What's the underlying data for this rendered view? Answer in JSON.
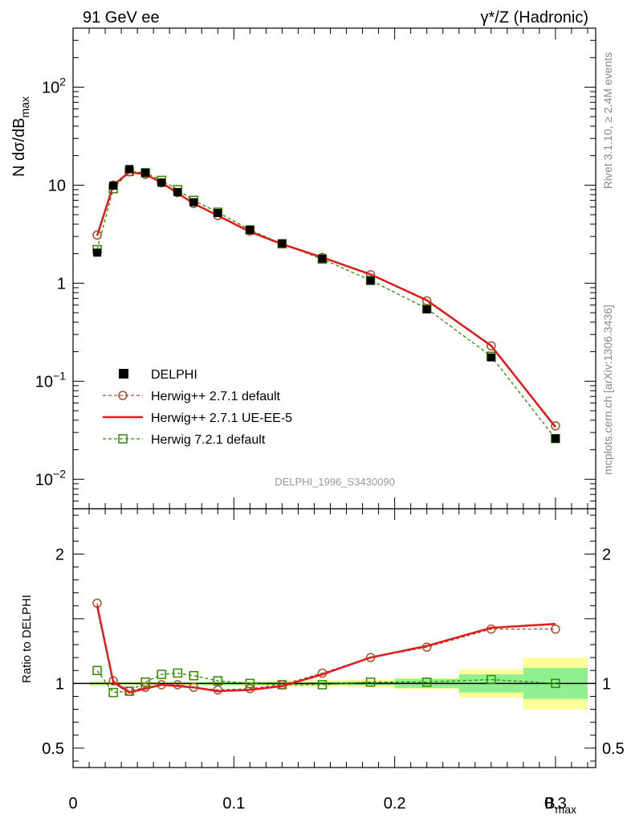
{
  "header": {
    "left": "91 GeV ee",
    "right": "γ*/Z (Hadronic)"
  },
  "side": {
    "top": "Rivet 3.1.10, ≥ 2.4M events",
    "bottom": "mcplots.cern.ch [arXiv:1306.3436]"
  },
  "analysis_tag": "DELPHI_1996_S3430090",
  "chart_data": [
    {
      "type": "scatter",
      "panel": "main",
      "ylabel": "N dσ/dB_max",
      "yscale": "log",
      "ylim": [
        0.005,
        400
      ],
      "xlim": [
        0,
        0.325
      ],
      "y_ticks": [
        {
          "v": 0.01,
          "label": "10",
          "exp": "−2"
        },
        {
          "v": 0.1,
          "label": "10",
          "exp": "−1"
        },
        {
          "v": 1,
          "label": "1",
          "exp": ""
        },
        {
          "v": 10,
          "label": "10",
          "exp": ""
        },
        {
          "v": 100,
          "label": "10",
          "exp": "2"
        }
      ],
      "legend_position": "center-left",
      "series": [
        {
          "name": "DELPHI",
          "x": [
            0.015,
            0.025,
            0.035,
            0.045,
            0.055,
            0.065,
            0.075,
            0.09,
            0.11,
            0.13,
            0.155,
            0.185,
            0.22,
            0.26,
            0.3
          ],
          "y": [
            2.05,
            9.9,
            14.6,
            13.4,
            10.6,
            8.5,
            6.7,
            5.2,
            3.5,
            2.55,
            1.78,
            1.06,
            0.54,
            0.175,
            0.026
          ],
          "color": "#000000",
          "style": "filled-square"
        },
        {
          "name": "Herwig++ 2.7.1 default",
          "x": [
            0.015,
            0.025,
            0.035,
            0.045,
            0.055,
            0.065,
            0.075,
            0.09,
            0.11,
            0.13,
            0.155,
            0.185,
            0.22,
            0.26,
            0.3
          ],
          "y": [
            3.1,
            10.0,
            13.7,
            12.9,
            10.6,
            8.4,
            6.5,
            4.9,
            3.4,
            2.52,
            1.83,
            1.22,
            0.66,
            0.23,
            0.035
          ],
          "color": "#a0522d",
          "style": "dashed-circle"
        },
        {
          "name": "Herwig++ 2.7.1 UE-EE-5",
          "x": [
            0.015,
            0.025,
            0.035,
            0.045,
            0.055,
            0.065,
            0.075,
            0.09,
            0.11,
            0.13,
            0.155,
            0.185,
            0.22,
            0.26,
            0.3
          ],
          "y": [
            3.05,
            10.0,
            13.6,
            12.9,
            10.6,
            8.3,
            6.5,
            4.9,
            3.35,
            2.5,
            1.83,
            1.23,
            0.67,
            0.23,
            0.034
          ],
          "color": "#e31a1c",
          "style": "solid"
        },
        {
          "name": "Herwig 7.2.1 default",
          "x": [
            0.015,
            0.025,
            0.035,
            0.045,
            0.055,
            0.065,
            0.075,
            0.09,
            0.11,
            0.13,
            0.155,
            0.185,
            0.22,
            0.26,
            0.3
          ],
          "y": [
            2.2,
            9.2,
            13.8,
            13.4,
            11.2,
            9.0,
            7.0,
            5.3,
            3.5,
            2.52,
            1.76,
            1.07,
            0.55,
            0.18,
            0.026
          ],
          "color": "#2e8b00",
          "style": "dashed-open-square"
        }
      ]
    },
    {
      "type": "scatter",
      "panel": "ratio",
      "xlabel": "B_max",
      "ylabel": "Ratio to DELPHI",
      "xlim": [
        0,
        0.325
      ],
      "ylim": [
        0.35,
        2.35
      ],
      "x_ticks": [
        0,
        0.1,
        0.2,
        0.3
      ],
      "x_tick_labels": [
        "0",
        "0.1",
        "0.2",
        "0.3"
      ],
      "y_ticks": [
        0.5,
        1,
        2
      ],
      "y_tick_labels": [
        "0.5",
        "1",
        "2"
      ],
      "uncertainty_bands": {
        "x_edges": [
          0.01,
          0.02,
          0.03,
          0.04,
          0.05,
          0.06,
          0.07,
          0.08,
          0.1,
          0.12,
          0.14,
          0.17,
          0.2,
          0.24,
          0.28,
          0.32
        ],
        "inner_halfwidth": [
          0.01,
          0.008,
          0.008,
          0.008,
          0.008,
          0.008,
          0.008,
          0.01,
          0.01,
          0.012,
          0.012,
          0.015,
          0.035,
          0.07,
          0.12
        ],
        "outer_halfwidth": [
          0.02,
          0.016,
          0.016,
          0.016,
          0.016,
          0.016,
          0.016,
          0.02,
          0.02,
          0.024,
          0.025,
          0.03,
          0.045,
          0.11,
          0.2
        ],
        "inner_color": "#90f090",
        "outer_color": "#ffff99"
      },
      "series": [
        {
          "name": "Herwig++ 2.7.1 default",
          "x": [
            0.015,
            0.025,
            0.035,
            0.045,
            0.055,
            0.065,
            0.075,
            0.09,
            0.11,
            0.13,
            0.155,
            0.185,
            0.22,
            0.26,
            0.3
          ],
          "y": [
            1.62,
            1.02,
            0.94,
            0.97,
            0.99,
            0.99,
            0.97,
            0.95,
            0.96,
            0.99,
            1.08,
            1.2,
            1.28,
            1.42,
            1.42
          ],
          "color": "#a0522d",
          "style": "dashed-circle"
        },
        {
          "name": "Herwig++ 2.7.1 UE-EE-5",
          "x": [
            0.015,
            0.025,
            0.035,
            0.045,
            0.055,
            0.065,
            0.075,
            0.09,
            0.11,
            0.13,
            0.155,
            0.185,
            0.22,
            0.26,
            0.3
          ],
          "y": [
            1.6,
            1.01,
            0.93,
            0.96,
            0.99,
            0.98,
            0.97,
            0.94,
            0.95,
            0.98,
            1.07,
            1.2,
            1.29,
            1.43,
            1.46
          ],
          "color": "#e31a1c",
          "style": "solid"
        },
        {
          "name": "Herwig 7.2.1 default",
          "x": [
            0.015,
            0.025,
            0.035,
            0.045,
            0.055,
            0.065,
            0.075,
            0.09,
            0.11,
            0.13,
            0.155,
            0.185,
            0.22,
            0.26,
            0.3
          ],
          "y": [
            1.1,
            0.93,
            0.94,
            1.01,
            1.07,
            1.08,
            1.06,
            1.02,
            1.0,
            0.99,
            0.99,
            1.01,
            1.01,
            1.03,
            1.0
          ],
          "color": "#2e8b00",
          "style": "dashed-open-square"
        }
      ]
    }
  ]
}
